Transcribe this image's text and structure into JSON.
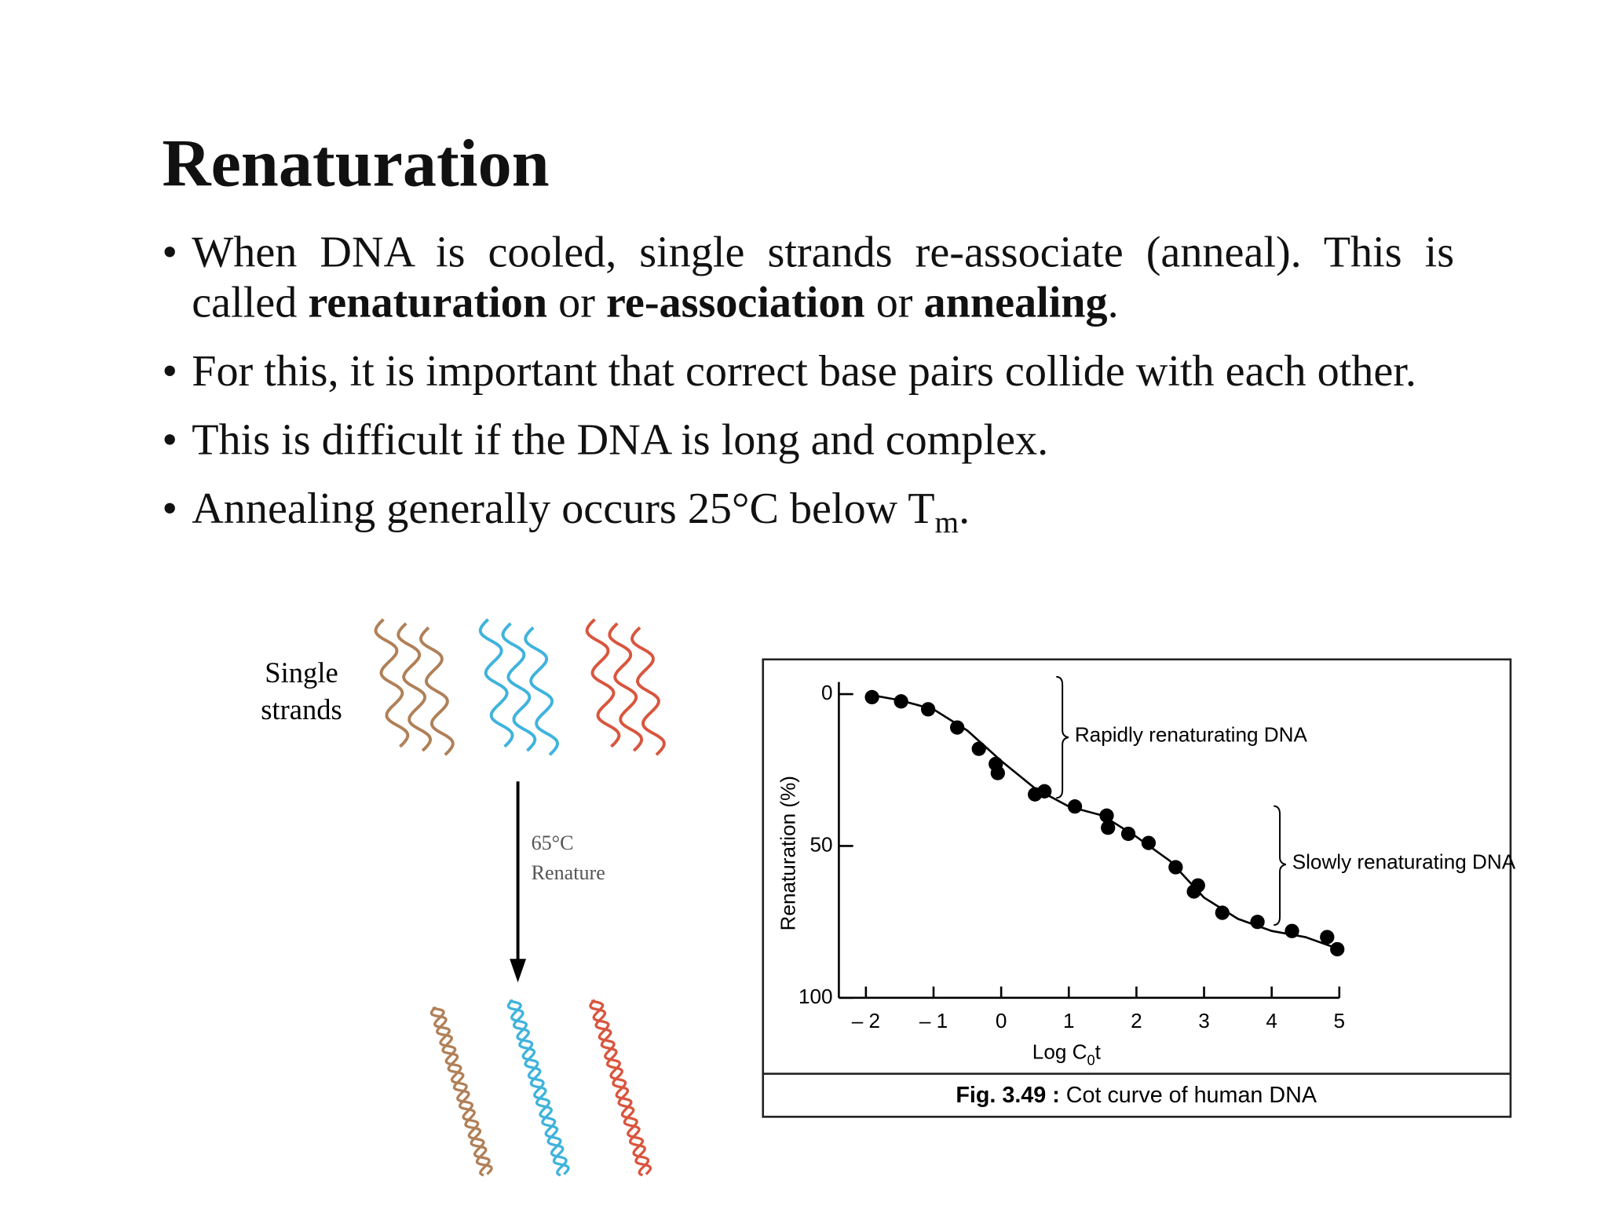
{
  "slide": {
    "title": "Renaturation",
    "bullets": [
      [
        {
          "text": "When DNA is cooled, single strands re-associate (anneal). This is called "
        },
        {
          "text": "renaturation",
          "style": "bold"
        },
        {
          "text": " or "
        },
        {
          "text": "re-association",
          "style": "bold"
        },
        {
          "text": " or "
        },
        {
          "text": "annealing",
          "style": "bold"
        },
        {
          "text": "."
        }
      ],
      [
        {
          "text": "For this, it is important that correct base pairs collide with each other."
        }
      ],
      [
        {
          "text": "This is difficult if the DNA is long and complex."
        }
      ],
      [
        {
          "text": "Annealing generally occurs 25°C below T"
        },
        {
          "text": "m",
          "style": "sub"
        },
        {
          "text": "."
        }
      ]
    ]
  },
  "diagram": {
    "strands_label": [
      "Single",
      "strands"
    ],
    "condition": "65°C",
    "step": "Renature"
  },
  "chart_data": {
    "type": "scatter",
    "x": [
      -1.91,
      -1.48,
      -1.08,
      -0.65,
      -0.33,
      -0.08,
      -0.05,
      0.5,
      0.64,
      1.09,
      1.56,
      1.58,
      1.88,
      2.18,
      2.58,
      2.85,
      2.91,
      3.27,
      3.79,
      4.3,
      4.82,
      4.97
    ],
    "values": [
      1,
      2.4,
      5,
      11,
      18,
      23,
      26,
      33,
      32,
      37,
      40,
      44,
      46,
      49,
      57,
      65,
      63,
      72,
      75,
      78,
      80,
      84
    ],
    "color": "#000000",
    "curve": {
      "x": [
        -2,
        -1.5,
        -1,
        -0.5,
        0,
        0.5,
        1,
        1.5,
        2,
        2.5,
        3,
        3.5,
        4,
        4.5,
        5
      ],
      "values": [
        0,
        2,
        5,
        12,
        22,
        31,
        37,
        40,
        47,
        55,
        67,
        74,
        78,
        80,
        84
      ]
    },
    "xlim": [
      -2.4,
      5
    ],
    "ylim": [
      100,
      -4
    ],
    "xticks": [
      {
        "value": -2,
        "label": "– 2"
      },
      {
        "value": -1,
        "label": "– 1"
      },
      0,
      1,
      2,
      3,
      4,
      5
    ],
    "yticks": [
      0,
      50,
      100
    ],
    "ylabel": "Renaturation (%)",
    "xlabel": [
      {
        "text": "Log C"
      },
      {
        "text": "0",
        "style": "sub"
      },
      {
        "text": "t"
      }
    ],
    "annotations": [
      "Rapidly renaturating DNA",
      "Slowly renaturating DNA"
    ],
    "caption": [
      {
        "text": "Fig. 3.49 :",
        "style": "bold"
      },
      {
        "text": " Cot curve of human DNA"
      }
    ]
  }
}
